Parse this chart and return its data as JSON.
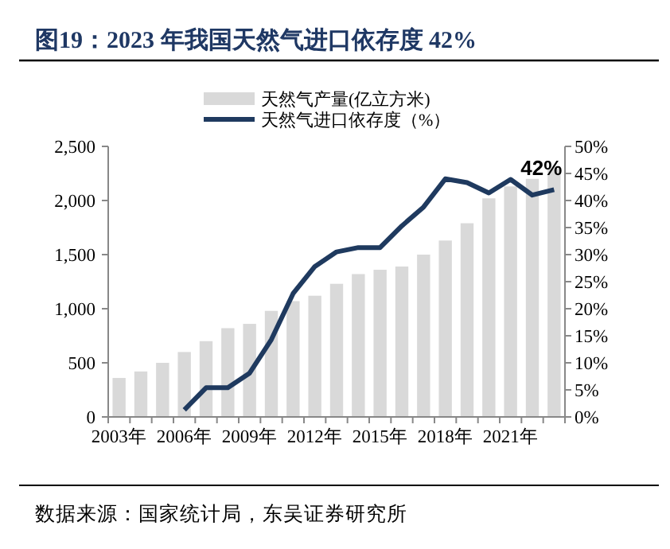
{
  "chart_data": {
    "type": "bar",
    "title": "图19：2023 年我国天然气进口依存度 42%",
    "categories": [
      "2003年",
      null,
      null,
      "2006年",
      null,
      null,
      "2009年",
      null,
      null,
      "2012年",
      null,
      null,
      "2015年",
      null,
      null,
      "2018年",
      null,
      null,
      "2021年",
      null,
      null
    ],
    "series": [
      {
        "name": "天然气产量(亿立方米)",
        "color": "#d9d9d9",
        "axis": "y",
        "values": [
          360,
          420,
          500,
          600,
          700,
          820,
          860,
          980,
          1070,
          1120,
          1230,
          1320,
          1360,
          1390,
          1500,
          1630,
          1790,
          2020,
          2130,
          2200,
          2290
        ]
      },
      {
        "name": "天然气进口依存度（%）",
        "type": "line",
        "color": "#1f3a5f",
        "axis": "y2",
        "values": [
          null,
          null,
          null,
          1.3,
          5.4,
          5.4,
          8.1,
          14.3,
          22.8,
          27.8,
          30.5,
          31.3,
          31.3,
          35.3,
          38.8,
          44,
          43.3,
          41.4,
          43.9,
          41,
          42
        ],
        "value_labels": [
          null,
          null,
          null,
          null,
          null,
          null,
          null,
          null,
          null,
          null,
          null,
          null,
          null,
          null,
          null,
          null,
          null,
          null,
          null,
          null,
          "42%"
        ]
      }
    ],
    "ylim": [
      0,
      2500
    ],
    "yticks": [
      0,
      500,
      {
        "value": 1000,
        "label": "1,000"
      },
      {
        "value": 1500,
        "label": "1,500"
      },
      {
        "value": 2000,
        "label": "2,000"
      },
      {
        "value": 2500,
        "label": "2,500"
      }
    ],
    "y2lim": [
      0,
      50
    ],
    "y2ticks": [
      {
        "value": 0,
        "label": "0%"
      },
      {
        "value": 5,
        "label": "5%"
      },
      {
        "value": 10,
        "label": "10%"
      },
      {
        "value": 15,
        "label": "15%"
      },
      {
        "value": 20,
        "label": "20%"
      },
      {
        "value": 25,
        "label": "25%"
      },
      {
        "value": 30,
        "label": "30%"
      },
      {
        "value": 35,
        "label": "35%"
      },
      {
        "value": 40,
        "label": "40%"
      },
      {
        "value": 45,
        "label": "45%"
      },
      {
        "value": 50,
        "label": "50%"
      }
    ],
    "legend": "top",
    "grid": false,
    "annotations": [
      "数据来源：国家统计局，东吴证券研究所"
    ]
  }
}
